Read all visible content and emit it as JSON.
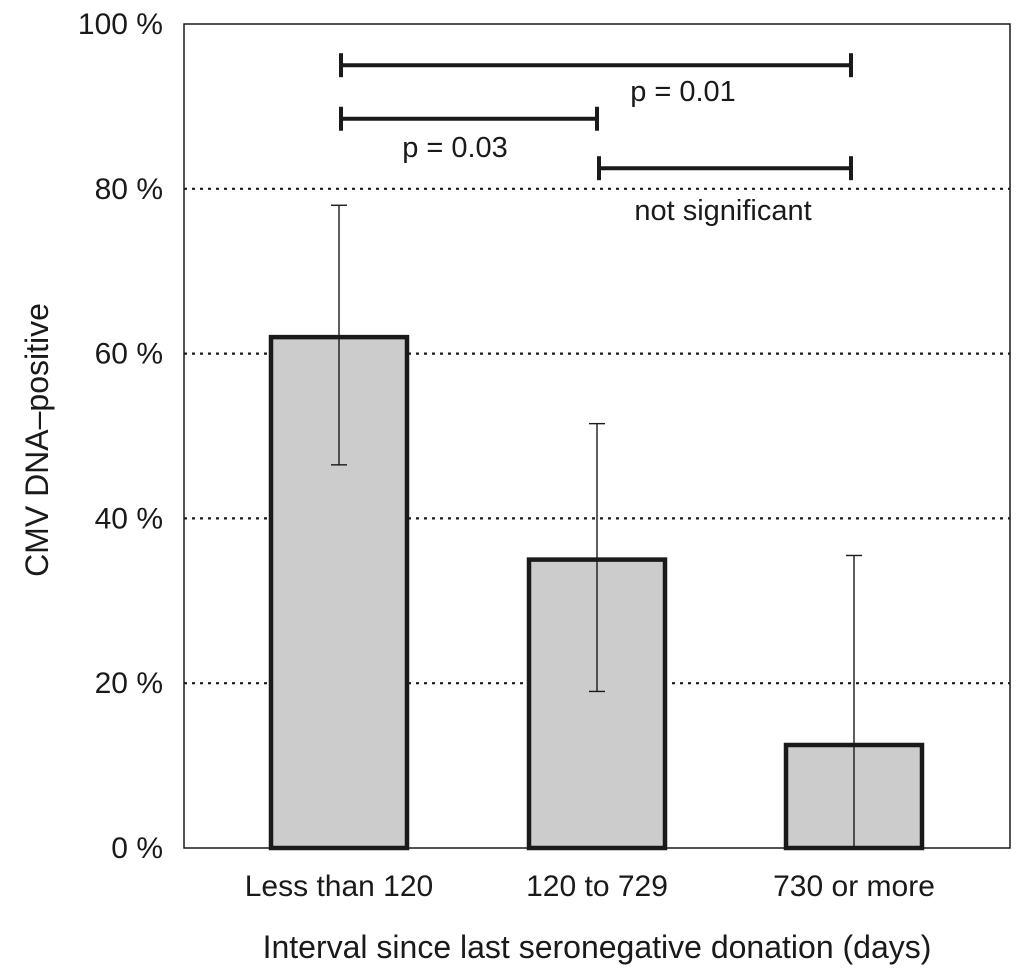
{
  "chart_data": {
    "type": "bar",
    "title": "",
    "xlabel": "Interval since last seronegative donation (days)",
    "ylabel": "CMV DNA–positive",
    "categories": [
      "Less than 120",
      "120 to 729",
      "730 or more"
    ],
    "values": [
      62,
      35,
      12.5
    ],
    "error_bars": [
      {
        "low": 46.5,
        "high": 78
      },
      {
        "low": 19,
        "high": 51.5
      },
      {
        "low": 0,
        "high": 35.5
      }
    ],
    "ylim": [
      0,
      100
    ],
    "yticks": [
      0,
      20,
      40,
      60,
      80,
      100
    ],
    "ytick_labels": [
      "0 %",
      "20 %",
      "40 %",
      "60 %",
      "80 %",
      "100 %"
    ],
    "grid": "dotted horizontal at 20 %, 40 %, 60 %, 80 %",
    "bar_color": "#cccccc",
    "bar_edge_color": "#1a1a1a",
    "significance": [
      {
        "from": 0,
        "to": 2,
        "level": 95,
        "label": "p = 0.01"
      },
      {
        "from": 0,
        "to": 1,
        "level": 88.5,
        "label": "p = 0.03"
      },
      {
        "from": 1,
        "to": 2,
        "level": 82.5,
        "label": "not significant"
      }
    ]
  }
}
